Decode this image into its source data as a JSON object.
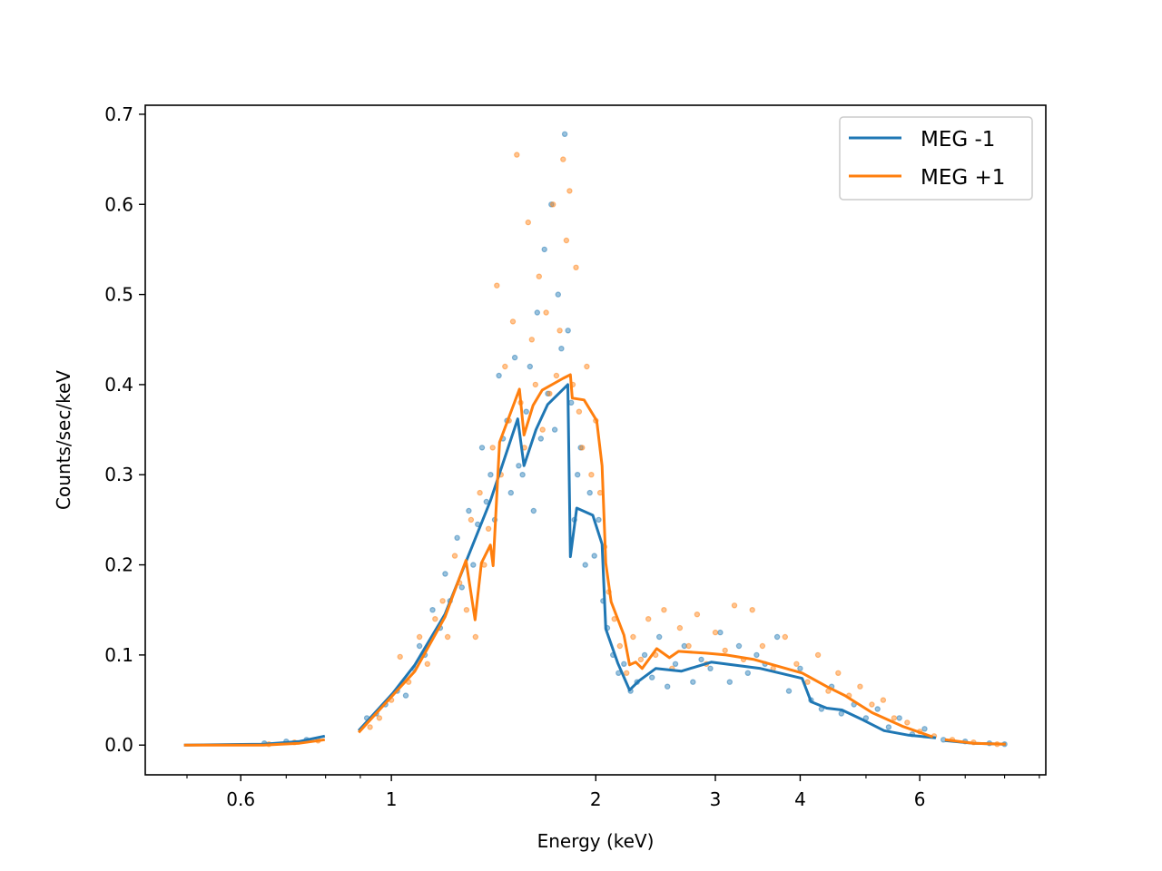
{
  "chart_data": {
    "type": "scatter",
    "title": "",
    "xlabel": "Energy (keV)",
    "ylabel": "Counts/sec/keV",
    "xscale": "log",
    "xlim": [
      0.434,
      9.2
    ],
    "ylim": [
      -0.033,
      0.71
    ],
    "grid": false,
    "legend_position": "top-right",
    "x_ticks": [
      {
        "value": 0.6,
        "label": "0.6"
      },
      {
        "value": 1,
        "label": "1"
      },
      {
        "value": 2,
        "label": "2"
      },
      {
        "value": 3,
        "label": "3"
      },
      {
        "value": 4,
        "label": "4"
      },
      {
        "value": 6,
        "label": "6"
      }
    ],
    "x_minor_ticks": [
      0.5,
      0.7,
      0.8,
      0.9,
      5,
      7,
      8,
      9
    ],
    "y_ticks": [
      {
        "value": 0.0,
        "label": "0.0"
      },
      {
        "value": 0.1,
        "label": "0.1"
      },
      {
        "value": 0.2,
        "label": "0.2"
      },
      {
        "value": 0.3,
        "label": "0.3"
      },
      {
        "value": 0.4,
        "label": "0.4"
      },
      {
        "value": 0.5,
        "label": "0.5"
      },
      {
        "value": 0.6,
        "label": "0.6"
      },
      {
        "value": 0.7,
        "label": "0.7"
      }
    ],
    "series": [
      {
        "name": "MEG -1",
        "color": "#1f77b4",
        "model_segments": [
          {
            "x": [
              0.495,
              0.648,
              0.732,
              0.798
            ],
            "y": [
              0.0,
              0.001,
              0.004,
              0.01
            ]
          },
          {
            "x": [
              0.895,
              1.006,
              1.083,
              1.199,
              1.303,
              1.399,
              1.535,
              1.568,
              1.633,
              1.699,
              1.819,
              1.835,
              1.875,
              1.98,
              2.043,
              2.069,
              2.155,
              2.243,
              2.313,
              2.451,
              2.672,
              2.959,
              3.497,
              4.026,
              4.151,
              4.377,
              4.608,
              4.946,
              5.315,
              5.778,
              6.337
            ],
            "y": [
              0.016,
              0.058,
              0.089,
              0.145,
              0.213,
              0.271,
              0.362,
              0.31,
              0.35,
              0.378,
              0.4,
              0.209,
              0.263,
              0.255,
              0.223,
              0.129,
              0.091,
              0.061,
              0.071,
              0.085,
              0.082,
              0.092,
              0.085,
              0.074,
              0.048,
              0.041,
              0.039,
              0.028,
              0.016,
              0.011,
              0.008
            ]
          },
          {
            "x": [
              6.535,
              7.2,
              8.03
            ],
            "y": [
              0.005,
              0.002,
              0.001
            ]
          }
        ],
        "points": {
          "x": [
            0.65,
            0.7,
            0.75,
            0.92,
            0.95,
            0.98,
            1.02,
            1.05,
            1.08,
            1.1,
            1.12,
            1.15,
            1.18,
            1.2,
            1.22,
            1.25,
            1.27,
            1.3,
            1.32,
            1.34,
            1.36,
            1.38,
            1.4,
            1.42,
            1.44,
            1.46,
            1.48,
            1.5,
            1.52,
            1.54,
            1.56,
            1.58,
            1.6,
            1.62,
            1.64,
            1.66,
            1.68,
            1.7,
            1.72,
            1.74,
            1.76,
            1.78,
            1.8,
            1.82,
            1.84,
            1.86,
            1.88,
            1.9,
            1.93,
            1.96,
            1.99,
            2.02,
            2.05,
            2.08,
            2.12,
            2.16,
            2.2,
            2.25,
            2.3,
            2.36,
            2.42,
            2.48,
            2.55,
            2.62,
            2.7,
            2.78,
            2.86,
            2.95,
            3.05,
            3.15,
            3.25,
            3.35,
            3.45,
            3.55,
            3.7,
            3.85,
            4.0,
            4.15,
            4.3,
            4.45,
            4.6,
            4.8,
            5.0,
            5.2,
            5.4,
            5.6,
            5.85,
            6.1,
            6.5,
            7.0,
            7.6,
            8.0
          ],
          "y": [
            0.002,
            0.004,
            0.006,
            0.03,
            0.035,
            0.045,
            0.06,
            0.055,
            0.085,
            0.11,
            0.1,
            0.15,
            0.13,
            0.19,
            0.16,
            0.23,
            0.175,
            0.26,
            0.2,
            0.245,
            0.33,
            0.27,
            0.3,
            0.25,
            0.41,
            0.34,
            0.36,
            0.28,
            0.43,
            0.31,
            0.3,
            0.37,
            0.42,
            0.26,
            0.48,
            0.34,
            0.55,
            0.39,
            0.6,
            0.35,
            0.5,
            0.44,
            0.678,
            0.46,
            0.38,
            0.25,
            0.3,
            0.33,
            0.2,
            0.28,
            0.21,
            0.25,
            0.16,
            0.13,
            0.1,
            0.08,
            0.09,
            0.06,
            0.07,
            0.1,
            0.075,
            0.12,
            0.065,
            0.09,
            0.11,
            0.07,
            0.095,
            0.085,
            0.125,
            0.07,
            0.11,
            0.08,
            0.1,
            0.09,
            0.12,
            0.06,
            0.085,
            0.05,
            0.04,
            0.065,
            0.035,
            0.045,
            0.03,
            0.04,
            0.02,
            0.03,
            0.012,
            0.018,
            0.006,
            0.004,
            0.002,
            0.001
          ]
        }
      },
      {
        "name": "MEG +1",
        "color": "#ff7f0e",
        "model_segments": [
          {
            "x": [
              0.495,
              0.648,
              0.732,
              0.798
            ],
            "y": [
              0.0,
              0.0,
              0.002,
              0.006
            ]
          },
          {
            "x": [
              0.895,
              1.083,
              1.199,
              1.288,
              1.328,
              1.357,
              1.399,
              1.412,
              1.443,
              1.544,
              1.568,
              1.617,
              1.668,
              1.79,
              1.835,
              1.847,
              1.922,
              2.006,
              2.043,
              2.069,
              2.107,
              2.2,
              2.243,
              2.29,
              2.341,
              2.459,
              2.567,
              2.648,
              2.904,
              3.113,
              3.422,
              4.026,
              4.377,
              4.655,
              5.106,
              5.654,
              6.273
            ],
            "y": [
              0.014,
              0.082,
              0.142,
              0.205,
              0.139,
              0.202,
              0.222,
              0.199,
              0.336,
              0.395,
              0.344,
              0.377,
              0.394,
              0.407,
              0.411,
              0.385,
              0.383,
              0.36,
              0.31,
              0.202,
              0.159,
              0.122,
              0.089,
              0.092,
              0.085,
              0.107,
              0.097,
              0.104,
              0.102,
              0.1,
              0.095,
              0.08,
              0.065,
              0.055,
              0.036,
              0.021,
              0.009
            ]
          },
          {
            "x": [
              6.535,
              7.2,
              8.03
            ],
            "y": [
              0.006,
              0.002,
              0.001
            ]
          }
        ],
        "points": {
          "x": [
            0.66,
            0.72,
            0.78,
            0.93,
            0.96,
            1.0,
            1.03,
            1.06,
            1.1,
            1.13,
            1.16,
            1.19,
            1.21,
            1.24,
            1.26,
            1.29,
            1.31,
            1.33,
            1.35,
            1.37,
            1.39,
            1.41,
            1.43,
            1.45,
            1.47,
            1.49,
            1.51,
            1.53,
            1.55,
            1.57,
            1.59,
            1.61,
            1.63,
            1.65,
            1.67,
            1.69,
            1.71,
            1.73,
            1.75,
            1.77,
            1.79,
            1.81,
            1.83,
            1.85,
            1.87,
            1.89,
            1.91,
            1.94,
            1.97,
            2.0,
            2.03,
            2.06,
            2.09,
            2.13,
            2.17,
            2.22,
            2.27,
            2.33,
            2.39,
            2.45,
            2.52,
            2.59,
            2.66,
            2.74,
            2.82,
            2.91,
            3.0,
            3.1,
            3.2,
            3.3,
            3.4,
            3.52,
            3.65,
            3.8,
            3.95,
            4.1,
            4.25,
            4.4,
            4.55,
            4.72,
            4.9,
            5.1,
            5.3,
            5.5,
            5.75,
            6.0,
            6.3,
            6.7,
            7.2,
            7.8
          ],
          "y": [
            0.001,
            0.003,
            0.005,
            0.02,
            0.03,
            0.05,
            0.098,
            0.07,
            0.12,
            0.09,
            0.14,
            0.16,
            0.12,
            0.21,
            0.18,
            0.15,
            0.25,
            0.12,
            0.28,
            0.2,
            0.24,
            0.33,
            0.51,
            0.3,
            0.42,
            0.36,
            0.47,
            0.655,
            0.38,
            0.33,
            0.58,
            0.45,
            0.4,
            0.52,
            0.35,
            0.48,
            0.39,
            0.6,
            0.41,
            0.46,
            0.65,
            0.56,
            0.615,
            0.4,
            0.53,
            0.37,
            0.33,
            0.42,
            0.3,
            0.36,
            0.28,
            0.22,
            0.17,
            0.14,
            0.11,
            0.08,
            0.12,
            0.095,
            0.14,
            0.1,
            0.15,
            0.085,
            0.13,
            0.11,
            0.145,
            0.09,
            0.125,
            0.105,
            0.155,
            0.095,
            0.15,
            0.11,
            0.085,
            0.12,
            0.09,
            0.07,
            0.1,
            0.06,
            0.08,
            0.055,
            0.065,
            0.045,
            0.05,
            0.03,
            0.025,
            0.015,
            0.01,
            0.006,
            0.003,
            0.001
          ]
        }
      }
    ]
  }
}
